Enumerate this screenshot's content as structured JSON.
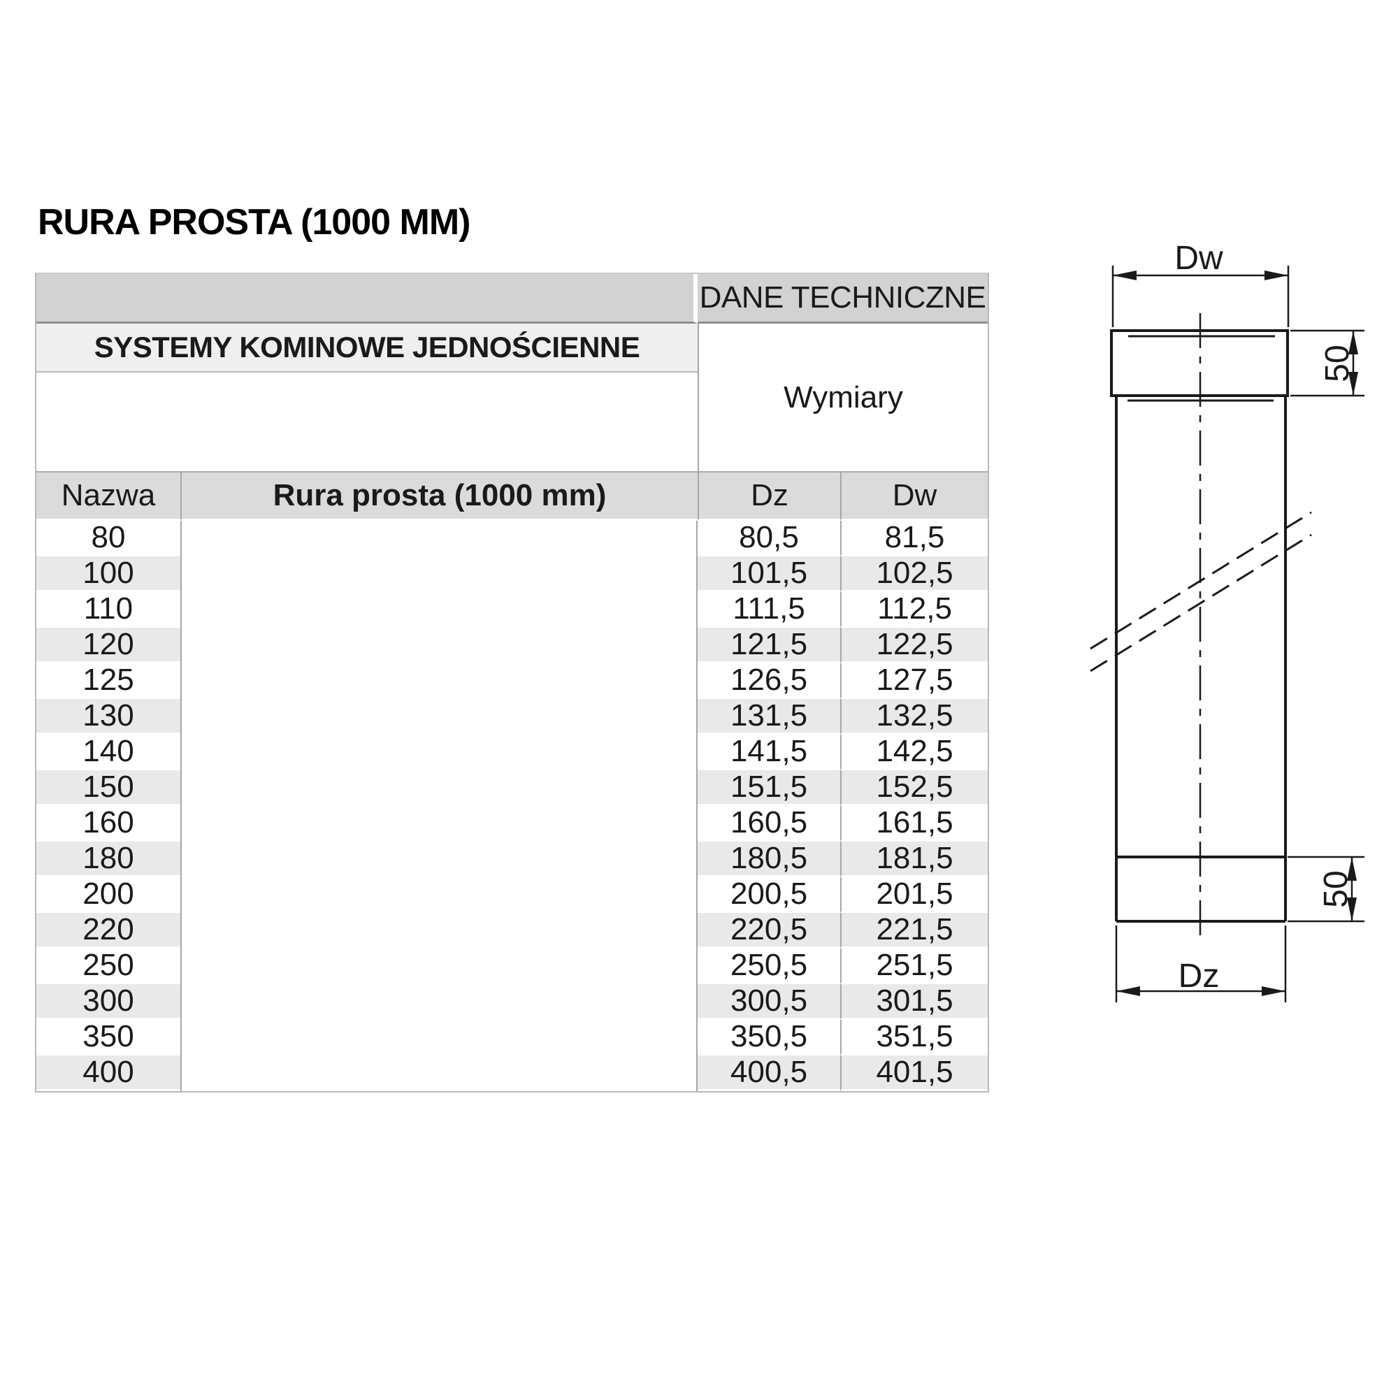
{
  "title": "RURA PROSTA (1000 MM)",
  "table": {
    "tech_header": "DANE TECHNICZNE",
    "section_header": "SYSTEMY KOMINOWE JEDNOŚCIENNE",
    "dimensions_label": "Wymiary",
    "columns": {
      "name": "Nazwa",
      "product": "Rura prosta (1000 mm)",
      "dz": "Dz",
      "dw": "Dw"
    },
    "rows": [
      {
        "name": "80",
        "dz": "80,5",
        "dw": "81,5"
      },
      {
        "name": "100",
        "dz": "101,5",
        "dw": "102,5"
      },
      {
        "name": "110",
        "dz": "111,5",
        "dw": "112,5"
      },
      {
        "name": "120",
        "dz": "121,5",
        "dw": "122,5"
      },
      {
        "name": "125",
        "dz": "126,5",
        "dw": "127,5"
      },
      {
        "name": "130",
        "dz": "131,5",
        "dw": "132,5"
      },
      {
        "name": "140",
        "dz": "141,5",
        "dw": "142,5"
      },
      {
        "name": "150",
        "dz": "151,5",
        "dw": "152,5"
      },
      {
        "name": "160",
        "dz": "160,5",
        "dw": "161,5"
      },
      {
        "name": "180",
        "dz": "180,5",
        "dw": "181,5"
      },
      {
        "name": "200",
        "dz": "200,5",
        "dw": "201,5"
      },
      {
        "name": "220",
        "dz": "220,5",
        "dw": "221,5"
      },
      {
        "name": "250",
        "dz": "250,5",
        "dw": "251,5"
      },
      {
        "name": "300",
        "dz": "300,5",
        "dw": "301,5"
      },
      {
        "name": "350",
        "dz": "350,5",
        "dw": "351,5"
      },
      {
        "name": "400",
        "dz": "400,5",
        "dw": "401,5"
      }
    ]
  },
  "drawing": {
    "inner_diameter_label": "Dw",
    "outer_diameter_label": "Dz",
    "socket_depth_top": "50",
    "socket_depth_bottom": "50"
  },
  "colors": {
    "header_gray": "#d2d2d2",
    "section_gray": "#efefef",
    "column_header_gray": "#dbdbdb",
    "stripe_gray": "#e9e9e9",
    "border_gray": "#a6a6a6",
    "line_black": "#1a1a1a"
  }
}
